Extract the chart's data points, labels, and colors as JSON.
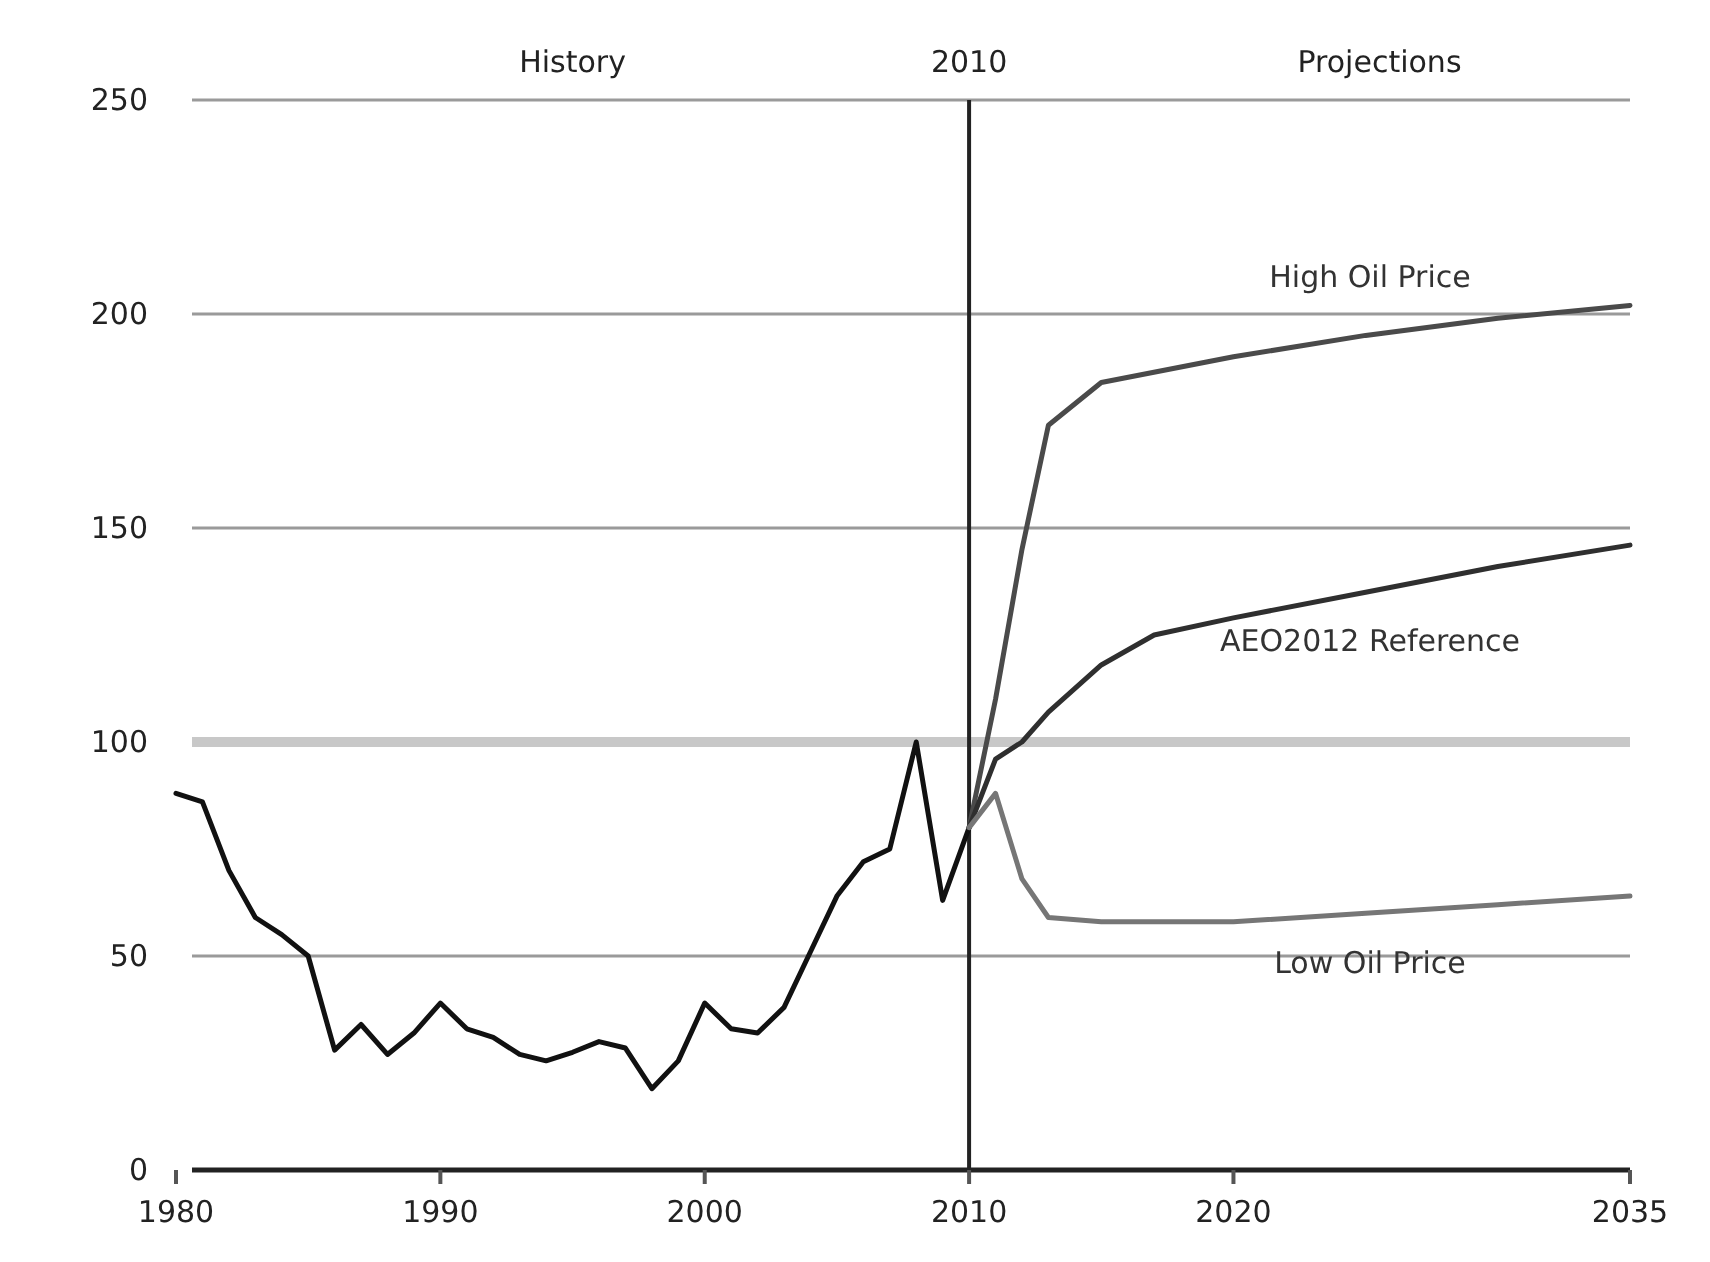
{
  "chart_data": {
    "type": "line",
    "xlim": [
      1980,
      2035
    ],
    "ylim": [
      0,
      250
    ],
    "xticks": [
      1980,
      1990,
      2000,
      2010,
      2020,
      2035
    ],
    "yticks": [
      0,
      50,
      100,
      150,
      200,
      250
    ],
    "grid": "y",
    "marker": "none",
    "line_style": "solid",
    "annotations": [
      "History",
      "Projections"
    ],
    "ref_lines": [
      {
        "axis": "x",
        "value": 2010,
        "label": "2010",
        "color": "#222222"
      },
      {
        "axis": "y",
        "value": 100,
        "color": "#c8c8c8"
      }
    ],
    "series": [
      {
        "color": "#111111",
        "x": [
          1980,
          1981,
          1982,
          1983,
          1984,
          1985,
          1986,
          1987,
          1988,
          1989,
          1990,
          1991,
          1992,
          1993,
          1994,
          1995,
          1996,
          1997,
          1998,
          1999,
          2000,
          2001,
          2002,
          2003,
          2004,
          2005,
          2006,
          2007,
          2008,
          2009,
          2010
        ],
        "values": [
          88,
          86,
          70,
          59,
          55,
          50,
          28,
          34,
          27,
          32,
          39,
          33,
          31,
          27,
          25.5,
          27.5,
          30,
          28.5,
          19,
          25.5,
          39,
          33,
          32,
          38,
          51,
          64,
          72,
          75,
          100,
          63,
          80
        ]
      },
      {
        "name": "High Oil Price",
        "color": "#4a4a4a",
        "x": [
          2010,
          2011,
          2012,
          2013,
          2015,
          2020,
          2025,
          2030,
          2035
        ],
        "values": [
          80,
          110,
          145,
          174,
          184,
          190,
          195,
          199,
          202
        ]
      },
      {
        "name": "AEO2012 Reference",
        "color": "#2f2f2f",
        "x": [
          2010,
          2011,
          2012,
          2013,
          2015,
          2017,
          2020,
          2025,
          2030,
          2035
        ],
        "values": [
          80,
          96,
          100,
          107,
          118,
          125,
          129,
          135,
          141,
          146
        ]
      },
      {
        "name": "Low Oil Price",
        "color": "#767676",
        "x": [
          2010,
          2011,
          2012,
          2013,
          2015,
          2020,
          2025,
          2030,
          2035
        ],
        "values": [
          80,
          88,
          68,
          59,
          58,
          58,
          60,
          62,
          64
        ]
      }
    ]
  }
}
